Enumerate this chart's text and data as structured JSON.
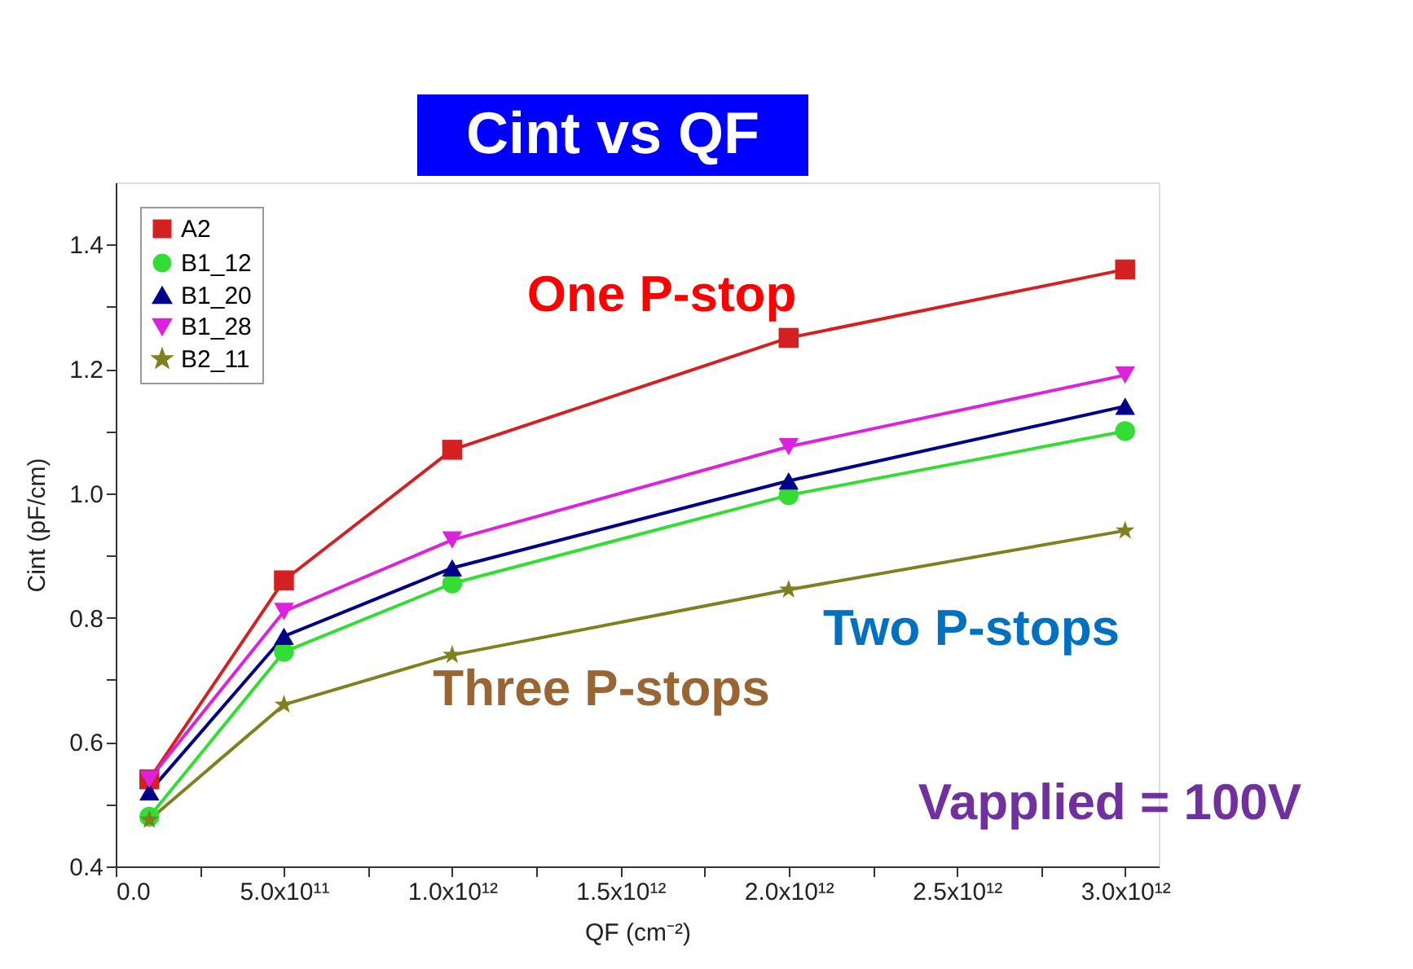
{
  "chart_data": {
    "type": "line",
    "title": "Cint vs QF",
    "xlabel": "QF (cm⁻²)",
    "ylabel": "Cint (pF/cm)",
    "x": [
      100000000000.0,
      500000000000.0,
      1000000000000.0,
      2000000000000.0,
      3000000000000.0
    ],
    "series": [
      {
        "name": "A2",
        "color": "#d42020",
        "marker": "square",
        "values": [
          0.54,
          0.86,
          1.07,
          1.25,
          1.36
        ]
      },
      {
        "name": "B1_12",
        "color": "#33dd33",
        "marker": "circle",
        "values": [
          0.48,
          0.745,
          0.855,
          0.997,
          1.1
        ]
      },
      {
        "name": "B1_20",
        "color": "#00008b",
        "marker": "triangle",
        "values": [
          0.52,
          0.77,
          0.88,
          1.02,
          1.14
        ]
      },
      {
        "name": "B1_28",
        "color": "#dd22dd",
        "marker": "triangle-down",
        "values": [
          0.54,
          0.81,
          0.925,
          1.075,
          1.19
        ]
      },
      {
        "name": "B2_11",
        "color": "#808020",
        "marker": "star",
        "values": [
          0.475,
          0.66,
          0.74,
          0.845,
          0.94
        ]
      }
    ],
    "xlim": [
      0,
      3100000000000.0
    ],
    "xticks": [
      {
        "value": 0,
        "label": "0.0"
      },
      {
        "value": 250000000000.0,
        "label": null
      },
      {
        "value": 500000000000.0,
        "label": "5.0x10¹¹"
      },
      {
        "value": 750000000000.0,
        "label": null
      },
      {
        "value": 1000000000000.0,
        "label": "1.0x10¹²"
      },
      {
        "value": 1250000000000.0,
        "label": null
      },
      {
        "value": 1500000000000.0,
        "label": "1.5x10¹²"
      },
      {
        "value": 1750000000000.0,
        "label": null
      },
      {
        "value": 2000000000000.0,
        "label": "2.0x10¹²"
      },
      {
        "value": 2250000000000.0,
        "label": null
      },
      {
        "value": 2500000000000.0,
        "label": "2.5x10¹²"
      },
      {
        "value": 2750000000000.0,
        "label": null
      },
      {
        "value": 3000000000000.0,
        "label": "3.0x10¹²"
      }
    ],
    "ylim": [
      0.4,
      1.5
    ],
    "yticks": [
      0.4,
      {
        "value": 0.5,
        "label": null
      },
      0.6,
      {
        "value": 0.7,
        "label": null
      },
      0.8,
      {
        "value": 0.9,
        "label": null
      },
      {
        "value": 1.0,
        "label": "1.0"
      },
      {
        "value": 1.1,
        "label": null
      },
      1.2,
      {
        "value": 1.3,
        "label": null
      },
      1.4
    ],
    "grid": false,
    "legend": "top left",
    "annotations": [
      "One P-stop",
      "Two P-stops",
      "Three P-stops",
      "Vapplied = 100V"
    ]
  }
}
